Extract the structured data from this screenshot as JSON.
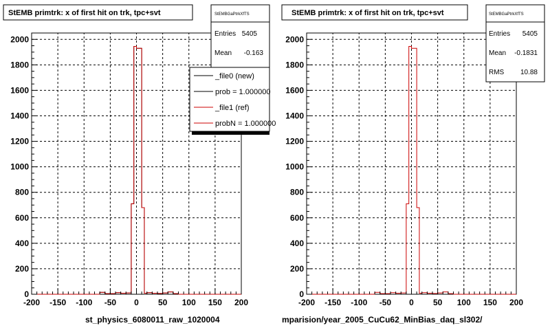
{
  "colors": {
    "new": "#000000",
    "ref": "#cc0000",
    "background": "#ffffff"
  },
  "footer_fragment": "",
  "panels": [
    {
      "title": "StEMB primtrk: x of first hit on trk, tpc+svt",
      "xlabel": "st_physics_6080011_raw_1020004",
      "stats": {
        "name": "StEMBGaPtrkXfTS",
        "rows": [
          {
            "label": "Entries",
            "value": "5405"
          },
          {
            "label": "Mean",
            "value": "-0.163"
          }
        ]
      },
      "legend": {
        "entries": [
          {
            "label": "_file0 (new)",
            "color": "#000000"
          },
          {
            "label": "prob = 1.000000",
            "color": "#000000"
          },
          {
            "label": "_file1 (ref)",
            "color": "#cc0000"
          },
          {
            "label": "probN = 1.000000",
            "color": "#cc0000"
          }
        ]
      }
    },
    {
      "title": "StEMB primtrk: x of first hit on trk, tpc+svt",
      "xlabel": "mparision/year_2005_CuCu62_MinBias_daq_sl302/",
      "stats": {
        "name": "StEMBGaPtrkXfTS",
        "rows": [
          {
            "label": "Entries",
            "value": "5405"
          },
          {
            "label": "Mean",
            "value": "-0.1831"
          },
          {
            "label": "RMS",
            "value": "10.88"
          }
        ]
      }
    }
  ],
  "chart_data": [
    {
      "type": "histogram",
      "title": "StEMB primtrk: x of first hit on trk, tpc+svt",
      "xlabel": "st_physics_6080011_raw_1020004",
      "xlim": [
        -200,
        200
      ],
      "ylim": [
        0,
        2050
      ],
      "xticks": [
        -200,
        -150,
        -100,
        -50,
        0,
        50,
        100,
        150,
        200
      ],
      "yticks": [
        0,
        200,
        400,
        600,
        800,
        1000,
        1200,
        1400,
        1600,
        1800,
        2000
      ],
      "grid": true,
      "legend_position": "top-right",
      "series": [
        {
          "name": "_file0 (new)",
          "color": "#000000",
          "x": [
            -200,
            -190,
            -180,
            -170,
            -160,
            -150,
            -140,
            -130,
            -120,
            -110,
            -100,
            -90,
            -80,
            -70,
            -60,
            -50,
            -40,
            -30,
            -20,
            -10,
            -5,
            0,
            5,
            10,
            15,
            20,
            30,
            40,
            50,
            60,
            70,
            80,
            90,
            100,
            110,
            120,
            130,
            140,
            150,
            160,
            170,
            180,
            190
          ],
          "values": [
            0,
            0,
            0,
            0,
            0,
            0,
            0,
            0,
            0,
            0,
            0,
            0,
            0,
            15,
            5,
            5,
            12,
            8,
            10,
            710,
            1945,
            1930,
            1930,
            680,
            8,
            12,
            8,
            6,
            10,
            18,
            5,
            0,
            0,
            0,
            0,
            0,
            0,
            0,
            0,
            0,
            0,
            0,
            0
          ]
        },
        {
          "name": "_file1 (ref)",
          "color": "#cc0000",
          "x": [
            -200,
            -190,
            -180,
            -170,
            -160,
            -150,
            -140,
            -130,
            -120,
            -110,
            -100,
            -90,
            -80,
            -70,
            -60,
            -50,
            -40,
            -30,
            -20,
            -10,
            -5,
            0,
            5,
            10,
            15,
            20,
            30,
            40,
            50,
            60,
            70,
            80,
            90,
            100,
            110,
            120,
            130,
            140,
            150,
            160,
            170,
            180,
            190
          ],
          "values": [
            0,
            0,
            0,
            0,
            0,
            0,
            0,
            0,
            0,
            0,
            0,
            0,
            0,
            15,
            5,
            5,
            12,
            8,
            10,
            710,
            1945,
            1930,
            1930,
            680,
            8,
            12,
            8,
            6,
            10,
            18,
            5,
            0,
            0,
            0,
            0,
            0,
            0,
            0,
            0,
            0,
            0,
            0,
            0
          ]
        }
      ]
    },
    {
      "type": "histogram",
      "title": "StEMB primtrk: x of first hit on trk, tpc+svt",
      "xlabel": "mparision/year_2005_CuCu62_MinBias_daq_sl302/",
      "xlim": [
        -200,
        200
      ],
      "ylim": [
        0,
        2050
      ],
      "xticks": [
        -200,
        -150,
        -100,
        -50,
        0,
        50,
        100,
        150,
        200
      ],
      "yticks": [
        0,
        200,
        400,
        600,
        800,
        1000,
        1200,
        1400,
        1600,
        1800,
        2000
      ],
      "grid": true,
      "series": [
        {
          "color": "#cc0000",
          "x": [
            -200,
            -190,
            -180,
            -170,
            -160,
            -150,
            -140,
            -130,
            -120,
            -110,
            -100,
            -90,
            -80,
            -70,
            -60,
            -50,
            -40,
            -30,
            -20,
            -10,
            -5,
            0,
            5,
            10,
            15,
            20,
            30,
            40,
            50,
            60,
            70,
            80,
            90,
            100,
            110,
            120,
            130,
            140,
            150,
            160,
            170,
            180,
            190
          ],
          "values": [
            0,
            0,
            0,
            0,
            0,
            0,
            0,
            0,
            0,
            0,
            0,
            0,
            0,
            15,
            5,
            5,
            12,
            8,
            10,
            710,
            1945,
            1930,
            1930,
            680,
            8,
            12,
            8,
            6,
            10,
            18,
            5,
            0,
            0,
            0,
            0,
            0,
            0,
            0,
            0,
            0,
            0,
            0,
            0
          ]
        }
      ]
    }
  ]
}
